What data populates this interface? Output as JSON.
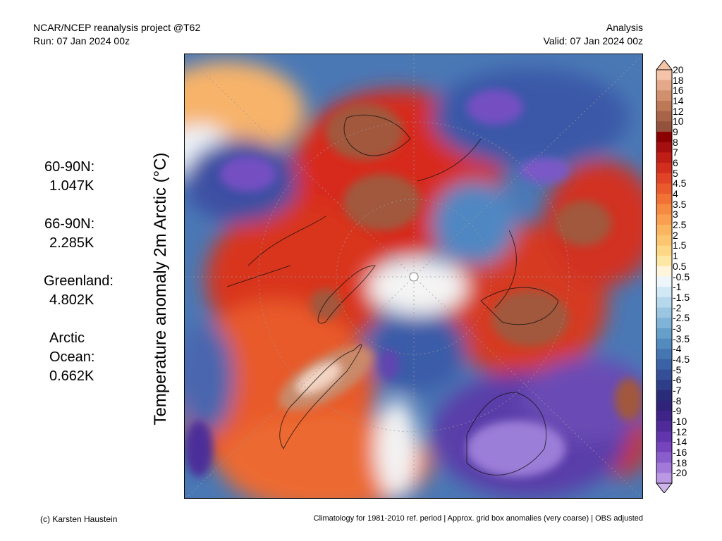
{
  "header": {
    "project": "NCAR/NCEP reanalysis project @T62",
    "run": "Run: 07 Jan 2024 00z",
    "type": "Analysis",
    "valid": "Valid: 07 Jan 2024 00z"
  },
  "ylabel": "Temperature anomaly 2m Arctic (°C)",
  "stats": [
    {
      "region": "60-90N:",
      "value": "1.047K"
    },
    {
      "region": "66-90N:",
      "value": "2.285K"
    },
    {
      "region": "Greenland:",
      "value": "4.802K"
    },
    {
      "region": "Arctic",
      "region2": "Ocean:",
      "value": "0.662K"
    }
  ],
  "colorbar": {
    "labels": [
      "20",
      "18",
      "16",
      "14",
      "12",
      "10",
      "9",
      "8",
      "7",
      "6",
      "5",
      "4.5",
      "4",
      "3.5",
      "3",
      "2.5",
      "2",
      "1.5",
      "1",
      "0.5",
      "-0.5",
      "-1",
      "-1.5",
      "-2",
      "-2.5",
      "-3",
      "-3.5",
      "-4",
      "-4.5",
      "-5",
      "-6",
      "-7",
      "-8",
      "-9",
      "-10",
      "-12",
      "-14",
      "-16",
      "-18",
      "-20"
    ],
    "colors": [
      "#f4c3a8",
      "#e3a98a",
      "#d1906d",
      "#bd7856",
      "#a86448",
      "#93523b",
      "#8b0000",
      "#a50f0f",
      "#c01d17",
      "#d22e1e",
      "#e04325",
      "#ea5a2d",
      "#f27236",
      "#f68a41",
      "#fa9f4f",
      "#fbb460",
      "#fcc671",
      "#fcd786",
      "#fde7a4",
      "#fef5dc",
      "#eef6fb",
      "#d2e8f4",
      "#b6d8ec",
      "#9ac6e2",
      "#7fb3d7",
      "#679fcb",
      "#548bbf",
      "#4576b2",
      "#3b62a4",
      "#344f96",
      "#2d3d88",
      "#2a2c79",
      "#30237a",
      "#3e2388",
      "#4f2b99",
      "#6135ab",
      "#7645bd",
      "#8b5ccc",
      "#a278d9",
      "#bb98e4"
    ]
  },
  "footer": {
    "credit": "(c) Karsten Haustein",
    "note": "Climatology for 1981-2010 ref. period | Approx. grid box anomalies (very coarse) | OBS adjusted"
  }
}
